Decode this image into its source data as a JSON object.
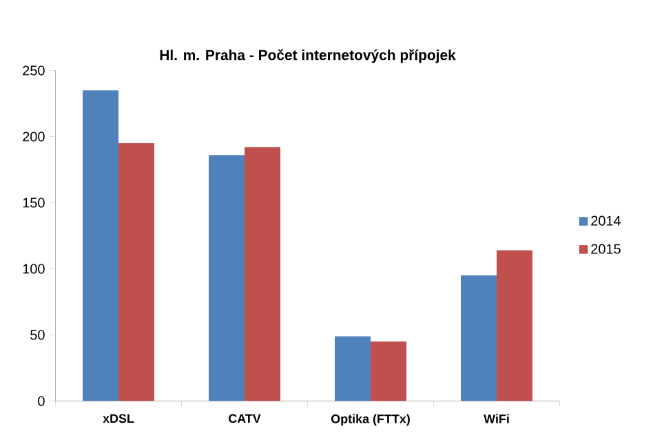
{
  "chart_data": {
    "type": "bar",
    "title": "Hl. m. Praha - Počet internetových přípojek",
    "categories": [
      "xDSL",
      "CATV",
      "Optika (FTTx)",
      "WiFi"
    ],
    "series": [
      {
        "name": "2014",
        "color": "#4f81bd",
        "values": [
          235,
          186,
          49,
          95
        ]
      },
      {
        "name": "2015",
        "color": "#c0504d",
        "values": [
          195,
          192,
          45,
          114
        ]
      }
    ],
    "ylim": [
      0,
      250
    ],
    "yticks": [
      0,
      50,
      100,
      150,
      200,
      250
    ],
    "grid": false,
    "legend": "right"
  }
}
